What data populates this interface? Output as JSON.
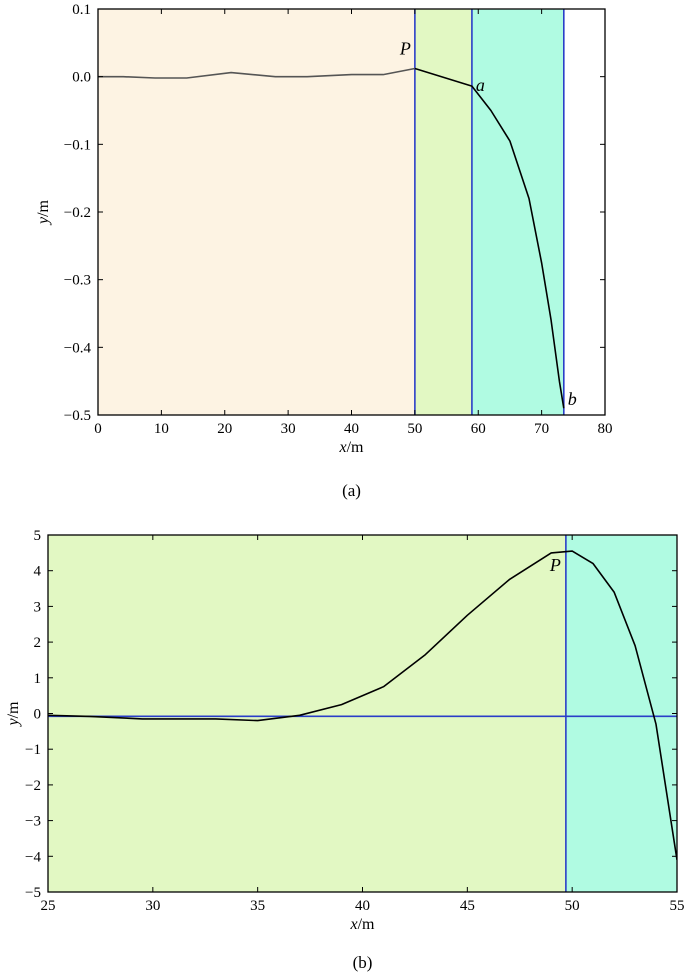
{
  "chart_data": [
    {
      "type": "line",
      "caption": "(a)",
      "xlabel": "x/m",
      "ylabel": "y/m",
      "xlim": [
        0,
        80
      ],
      "ylim": [
        -0.5,
        0.1
      ],
      "xticks": [
        0,
        10,
        20,
        30,
        40,
        50,
        60,
        70,
        80
      ],
      "yticks": [
        0.1,
        0.0,
        -0.1,
        -0.2,
        -0.3,
        -0.4,
        -0.5
      ],
      "xtick_labels": [
        "0",
        "10",
        "20",
        "30",
        "40",
        "50",
        "60",
        "70",
        "80"
      ],
      "ytick_labels": [
        "0.1",
        "0.0",
        "−0.1",
        "−0.2",
        "−0.3",
        "−0.4",
        "−0.5"
      ],
      "grid": false,
      "regions": [
        {
          "x0": 0,
          "x1": 50,
          "color": "#fdf3e3"
        },
        {
          "x0": 50,
          "x1": 59,
          "color": "#e2f8c3"
        },
        {
          "x0": 59,
          "x1": 73.5,
          "color": "#b0fbe2"
        }
      ],
      "vlines": [
        {
          "x": 50,
          "color": "#2a3ec8"
        },
        {
          "x": 59,
          "color": "#2a3ec8"
        },
        {
          "x": 73.5,
          "color": "#2a3ec8"
        }
      ],
      "series": [
        {
          "color": "#555555",
          "x": [
            0,
            4,
            9,
            14,
            21,
            28,
            33,
            40,
            45,
            50
          ],
          "y": [
            0.0,
            0.0,
            -0.002,
            -0.002,
            0.006,
            0.0,
            0.0,
            0.003,
            0.003,
            0.012
          ]
        },
        {
          "color": "#000000",
          "x": [
            50,
            59,
            62,
            65,
            68,
            70,
            71.5,
            72.8,
            73.5
          ],
          "y": [
            0.012,
            -0.014,
            -0.05,
            -0.095,
            -0.18,
            -0.275,
            -0.36,
            -0.45,
            -0.49
          ]
        }
      ],
      "annotations": [
        {
          "text": "P",
          "x": 50,
          "y": 0.012
        },
        {
          "text": "a",
          "x": 59,
          "y": -0.014
        },
        {
          "text": "b",
          "x": 73.5,
          "y": -0.49
        }
      ]
    },
    {
      "type": "line",
      "caption": "(b)",
      "xlabel": "x/m",
      "ylabel": "y/m",
      "xlim": [
        25,
        55
      ],
      "ylim": [
        -5,
        5
      ],
      "xticks": [
        25,
        30,
        35,
        40,
        45,
        50,
        55
      ],
      "yticks": [
        5,
        4,
        3,
        2,
        1,
        0,
        -1,
        -2,
        -3,
        -4,
        -5
      ],
      "xtick_labels": [
        "25",
        "30",
        "35",
        "40",
        "45",
        "50",
        "55"
      ],
      "ytick_labels": [
        "5",
        "4",
        "3",
        "2",
        "1",
        "0",
        "−1",
        "−2",
        "−3",
        "−4",
        "−5"
      ],
      "grid": false,
      "regions": [
        {
          "x0": 25,
          "x1": 49.7,
          "color": "#e2f8c3"
        },
        {
          "x0": 49.7,
          "x1": 55,
          "color": "#b0fbe2"
        }
      ],
      "vlines": [
        {
          "x": 49.7,
          "color": "#2a3ec8"
        }
      ],
      "hlines": [
        {
          "y": -0.08,
          "color": "#2a3ec8"
        }
      ],
      "series": [
        {
          "color": "#000000",
          "x": [
            25,
            27,
            29.5,
            33,
            35,
            37,
            39,
            41,
            43,
            45,
            47,
            49,
            50,
            51,
            52,
            53,
            54,
            55
          ],
          "y": [
            -0.05,
            -0.08,
            -0.15,
            -0.15,
            -0.2,
            -0.05,
            0.25,
            0.75,
            1.65,
            2.75,
            3.75,
            4.5,
            4.55,
            4.2,
            3.4,
            1.9,
            -0.3,
            -4.1
          ]
        }
      ],
      "annotations": [
        {
          "text": "P",
          "x": 49.7,
          "y": 4.5
        }
      ]
    }
  ]
}
